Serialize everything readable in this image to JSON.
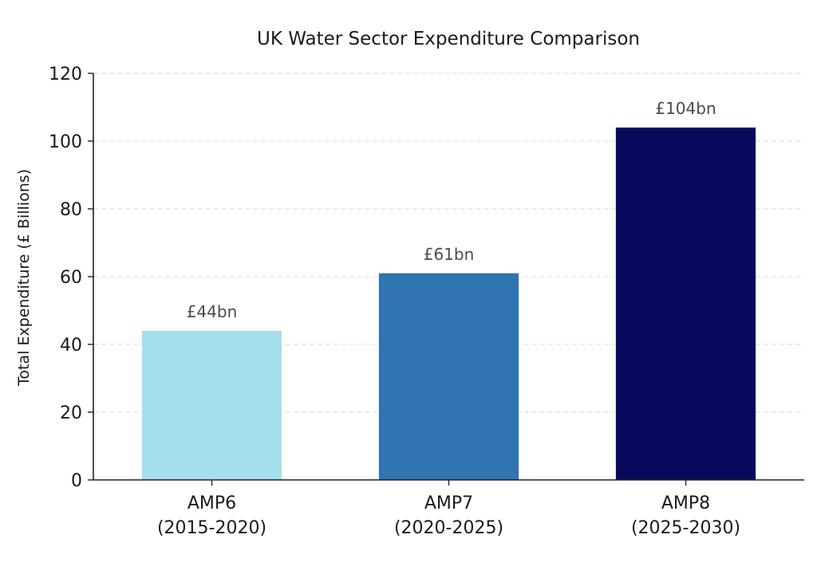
{
  "chart_data": {
    "type": "bar",
    "title": "UK Water Sector Expenditure Comparison",
    "xlabel": "",
    "ylabel": "Total Expenditure (£ Billions)",
    "ylim": [
      0,
      120
    ],
    "yticks": [
      0,
      20,
      40,
      60,
      80,
      100,
      120
    ],
    "grid": true,
    "categories": [
      {
        "name": "AMP6",
        "period": "(2015-2020)"
      },
      {
        "name": "AMP7",
        "period": "(2020-2025)"
      },
      {
        "name": "AMP8",
        "period": "(2025-2030)"
      }
    ],
    "values": [
      44,
      61,
      104
    ],
    "data_labels": [
      "£44bn",
      "£61bn",
      "£104bn"
    ],
    "colors": [
      "#a6dfec",
      "#3174b2",
      "#070a5c"
    ]
  }
}
